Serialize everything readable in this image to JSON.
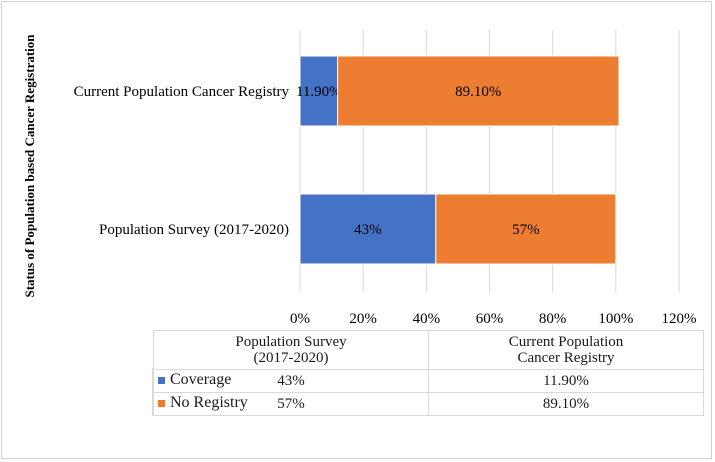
{
  "chart_data": {
    "type": "bar",
    "orientation": "horizontal",
    "stacked": true,
    "ylabel": "Status of Population based Cancer Registration",
    "categories": [
      "Current Population Cancer Registry",
      "Population Survey (2017-2020)"
    ],
    "series": [
      {
        "name": "Coverage",
        "color": "#4472C4",
        "values": [
          11.9,
          43
        ],
        "labels": [
          "11.90%",
          "43%"
        ]
      },
      {
        "name": "No Registry",
        "color": "#ED7D31",
        "values": [
          89.1,
          57
        ],
        "labels": [
          "89.10%",
          "57%"
        ]
      }
    ],
    "xlim": [
      0,
      120
    ],
    "ticks": [
      0,
      20,
      40,
      60,
      80,
      100,
      120
    ],
    "tick_labels": [
      "0%",
      "20%",
      "40%",
      "60%",
      "80%",
      "100%",
      "120%"
    ],
    "grid": true
  },
  "table": {
    "headers": [
      "Population Survey\n(2017-2020)",
      "Current Population\nCancer Registry"
    ],
    "rows": [
      {
        "name": "Coverage",
        "values": [
          "43%",
          "11.90%"
        ]
      },
      {
        "name": "No Registry",
        "values": [
          "57%",
          "89.10%"
        ]
      }
    ]
  }
}
